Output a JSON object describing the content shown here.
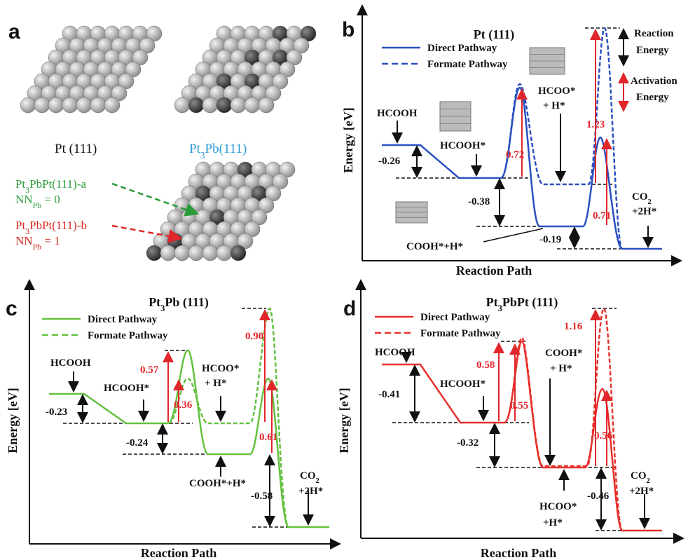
{
  "panel_a": {
    "letter": "a",
    "pt_label": "Pt (111)",
    "pt3pb_label": {
      "main": "Pt",
      "sub": "3",
      "rest": "Pb(111)"
    },
    "site_a": {
      "main": "Pt",
      "sub": "3",
      "rest": "PbPt(111)-a",
      "nn": "NN",
      "nn_sub": "Pb",
      "nn_rest": " = 0"
    },
    "site_b": {
      "main": "Pt",
      "sub": "3",
      "rest": "PbPt(111)-b",
      "nn": "NN",
      "nn_sub": "Pb",
      "nn_rest": " = 1"
    }
  },
  "panel_b": {
    "letter": "b",
    "title": "Pt (111)",
    "legend": [
      "Direct Pathway",
      "Formate Pathway"
    ],
    "y_label": "Energy [eV]",
    "x_label": "Reaction Path",
    "states": [
      "HCOOH",
      "HCOOH*",
      "HCOO*",
      "+ H*",
      "COOH*+H*",
      "CO",
      "2",
      "+2H*"
    ],
    "energies": [
      "-0.26",
      "-0.38",
      "-0.19"
    ],
    "barriers": [
      "0.72",
      "1.23",
      "0.71"
    ],
    "key": [
      "Reaction",
      "Energy",
      "Activation",
      "Energy"
    ]
  },
  "panel_c": {
    "letter": "c",
    "title": {
      "main": "Pt",
      "sub": "3",
      "rest": "Pb (111)"
    },
    "legend": [
      "Direct Pathway",
      "Formate Pathway"
    ],
    "y_label": "Energy [eV]",
    "x_label": "Reaction Path",
    "states": [
      "HCOOH",
      "HCOOH*",
      "HCOO*",
      "+ H*",
      "COOH*+H*",
      "CO",
      "2",
      "+2H*"
    ],
    "energies": [
      "-0.23",
      "-0.24",
      "-0.58"
    ],
    "barriers": [
      "0.57",
      "0.36",
      "0.90",
      "0.61"
    ]
  },
  "panel_d": {
    "letter": "d",
    "title": {
      "main": "Pt",
      "sub": "3",
      "rest": "PbPt (111)"
    },
    "legend": [
      "Direct Pathway",
      "Formate Pathway"
    ],
    "y_label": "Energy [eV]",
    "x_label": "Reaction Path",
    "states": [
      "HCOOH",
      "HCOOH*",
      "COOH*",
      "+ H*",
      "HCOO*",
      "+H*",
      "CO",
      "2",
      "+2H*"
    ],
    "energies": [
      "-0.41",
      "-0.32",
      "-0.46"
    ],
    "barriers": [
      "0.58",
      "0.55",
      "1.16",
      "0.56"
    ]
  }
}
